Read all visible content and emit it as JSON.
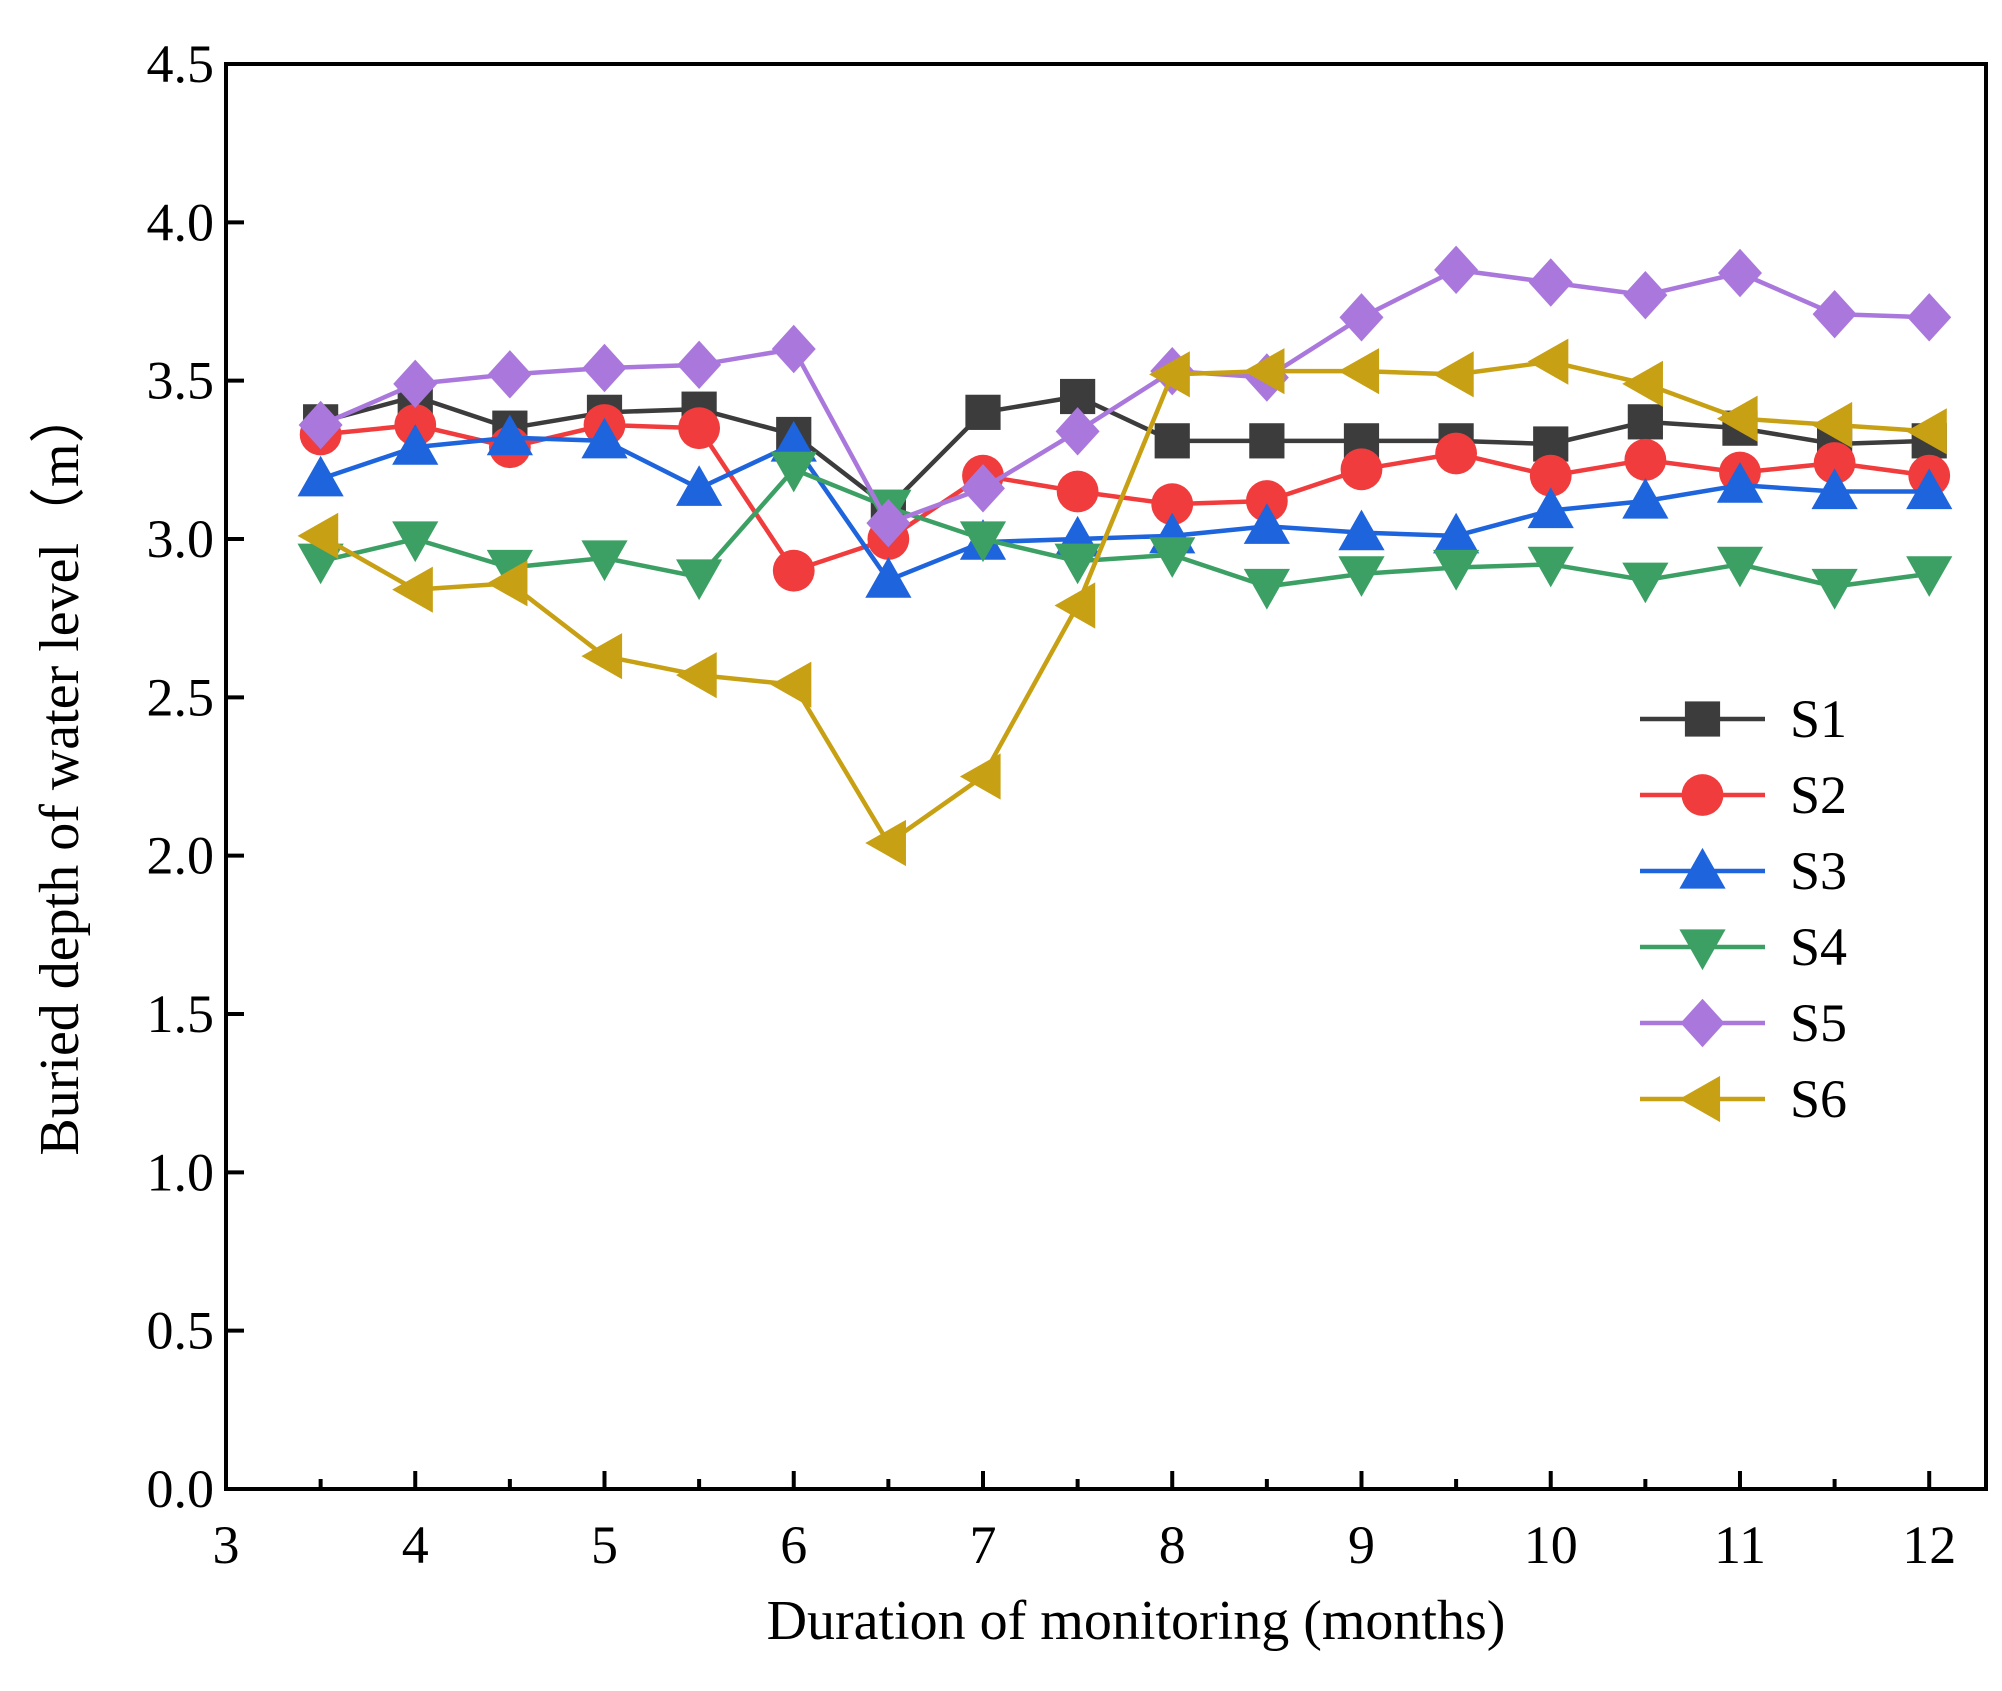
{
  "chart_data": {
    "type": "line",
    "title": "",
    "xlabel": "Duration of monitoring (months)",
    "ylabel": "Buried depth of water level（m）",
    "xlim": [
      3,
      12.3
    ],
    "ylim": [
      0,
      4.5
    ],
    "xticks": [
      3,
      4,
      5,
      6,
      7,
      8,
      9,
      10,
      11,
      12
    ],
    "xtick_labels": [
      "3",
      "4",
      "5",
      "6",
      "7",
      "8",
      "9",
      "10",
      "11",
      "12"
    ],
    "yticks": [
      0,
      0.5,
      1,
      1.5,
      2,
      2.5,
      3,
      3.5,
      4,
      4.5
    ],
    "ytick_labels": [
      "0.0",
      "0.5",
      "1.0",
      "1.5",
      "2.0",
      "2.5",
      "3.0",
      "3.5",
      "4.0",
      "4.5"
    ],
    "grid": false,
    "legend_position": "right",
    "x": [
      3.5,
      4,
      4.5,
      5,
      5.5,
      6,
      6.5,
      7,
      7.5,
      8,
      8.5,
      9,
      9.5,
      10,
      10.5,
      11,
      11.5,
      12
    ],
    "series": [
      {
        "name": "S1",
        "color": "#3c3c3c",
        "marker": "square",
        "values": [
          3.37,
          3.45,
          3.35,
          3.4,
          3.41,
          3.33,
          3.1,
          3.4,
          3.45,
          3.31,
          3.31,
          3.31,
          3.31,
          3.3,
          3.37,
          3.35,
          3.3,
          3.31
        ]
      },
      {
        "name": "S2",
        "color": "#f03c3c",
        "marker": "circle",
        "values": [
          3.33,
          3.36,
          3.29,
          3.36,
          3.35,
          2.9,
          3.0,
          3.2,
          3.15,
          3.11,
          3.12,
          3.22,
          3.27,
          3.2,
          3.25,
          3.21,
          3.24,
          3.2
        ]
      },
      {
        "name": "S3",
        "color": "#1e64dc",
        "marker": "triangle-up",
        "values": [
          3.19,
          3.29,
          3.32,
          3.31,
          3.16,
          3.3,
          2.87,
          2.99,
          3.0,
          3.01,
          3.04,
          3.02,
          3.01,
          3.09,
          3.12,
          3.17,
          3.15,
          3.15
        ]
      },
      {
        "name": "S4",
        "color": "#3ca064",
        "marker": "triangle-down",
        "values": [
          2.93,
          3.0,
          2.91,
          2.94,
          2.88,
          3.22,
          3.1,
          3.0,
          2.93,
          2.95,
          2.85,
          2.89,
          2.91,
          2.92,
          2.87,
          2.92,
          2.85,
          2.89
        ]
      },
      {
        "name": "S5",
        "color": "#aa78dc",
        "marker": "diamond",
        "values": [
          3.36,
          3.49,
          3.52,
          3.54,
          3.55,
          3.6,
          3.05,
          3.16,
          3.34,
          3.53,
          3.51,
          3.7,
          3.85,
          3.81,
          3.77,
          3.84,
          3.71,
          3.7
        ]
      },
      {
        "name": "S6",
        "color": "#c8a014",
        "marker": "triangle-left",
        "values": [
          3.01,
          2.84,
          2.86,
          2.63,
          2.57,
          2.54,
          2.04,
          2.25,
          2.79,
          3.52,
          3.53,
          3.53,
          3.52,
          3.56,
          3.49,
          3.38,
          3.36,
          3.34
        ]
      }
    ]
  }
}
